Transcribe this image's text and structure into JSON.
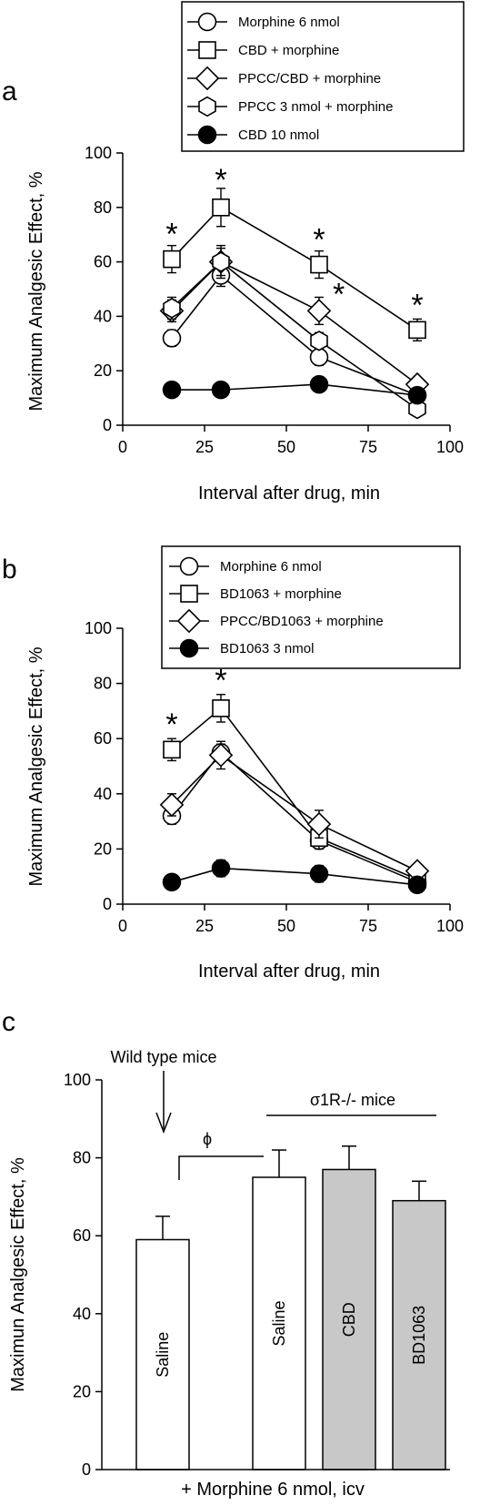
{
  "panels": [
    {
      "letter": "a",
      "chart_data": {
        "type": "line",
        "xlabel": "Interval after drug, min",
        "ylabel": "Maximum Analgesic Effect, %",
        "xlim": [
          0,
          100
        ],
        "ylim": [
          0,
          100
        ],
        "xticks": [
          0,
          25,
          50,
          75,
          100
        ],
        "yticks": [
          0,
          20,
          40,
          60,
          80,
          100
        ],
        "legend_position": "top",
        "series": [
          {
            "name": "Morphine 6 nmol",
            "marker": "circle-open",
            "x": [
              15,
              30,
              60,
              90
            ],
            "y": [
              32,
              55,
              25,
              11
            ],
            "err": [
              3,
              4,
              3,
              2
            ]
          },
          {
            "name": "CBD + morphine",
            "marker": "square-open",
            "x": [
              15,
              30,
              60,
              90
            ],
            "y": [
              61,
              80,
              59,
              35
            ],
            "err": [
              5,
              7,
              5,
              4
            ]
          },
          {
            "name": "PPCC/CBD + morphine",
            "marker": "diamond-open",
            "x": [
              15,
              30,
              60,
              90
            ],
            "y": [
              42,
              60,
              42,
              15
            ],
            "err": [
              4,
              6,
              5,
              2
            ]
          },
          {
            "name": "PPCC 3 nmol + morphine",
            "marker": "hexagon-open",
            "x": [
              15,
              30,
              60,
              90
            ],
            "y": [
              43,
              60,
              31,
              6
            ],
            "err": [
              4,
              5,
              3,
              2
            ]
          },
          {
            "name": "CBD 10 nmol",
            "marker": "circle-filled",
            "x": [
              15,
              30,
              60,
              90
            ],
            "y": [
              13,
              13,
              15,
              11
            ],
            "err": [
              1,
              1,
              2,
              1
            ]
          }
        ],
        "annotations": [
          {
            "text": "*",
            "x": 15,
            "y": 71
          },
          {
            "text": "*",
            "x": 30,
            "y": 91
          },
          {
            "text": "*",
            "x": 60,
            "y": 69
          },
          {
            "text": "*",
            "x": 66,
            "y": 49
          },
          {
            "text": "*",
            "x": 90,
            "y": 45
          }
        ]
      }
    },
    {
      "letter": "b",
      "chart_data": {
        "type": "line",
        "xlabel": "Interval after drug, min",
        "ylabel": "Maximum Analgesic Effect, %",
        "xlim": [
          0,
          100
        ],
        "ylim": [
          0,
          100
        ],
        "xticks": [
          0,
          25,
          50,
          75,
          100
        ],
        "yticks": [
          0,
          20,
          40,
          60,
          80,
          100
        ],
        "legend_position": "top",
        "series": [
          {
            "name": "Morphine 6 nmol",
            "marker": "circle-open",
            "x": [
              15,
              30,
              60,
              90
            ],
            "y": [
              32,
              55,
              23,
              8
            ],
            "err": [
              3,
              3,
              3,
              2
            ]
          },
          {
            "name": "BD1063 + morphine",
            "marker": "square-open",
            "x": [
              15,
              30,
              60,
              90
            ],
            "y": [
              56,
              71,
              24,
              9
            ],
            "err": [
              4,
              5,
              4,
              2
            ]
          },
          {
            "name": "PPCC/BD1063 + morphine",
            "marker": "diamond-open",
            "x": [
              15,
              30,
              60,
              90
            ],
            "y": [
              36,
              54,
              29,
              12
            ],
            "err": [
              4,
              5,
              5,
              2
            ]
          },
          {
            "name": "BD1063 3 nmol",
            "marker": "circle-filled",
            "x": [
              15,
              30,
              60,
              90
            ],
            "y": [
              8,
              13,
              11,
              7
            ],
            "err": [
              2,
              3,
              3,
              2
            ]
          }
        ],
        "annotations": [
          {
            "text": "*",
            "x": 15,
            "y": 66
          },
          {
            "text": "*",
            "x": 30,
            "y": 82
          }
        ]
      }
    },
    {
      "letter": "c",
      "chart_data": {
        "type": "bar",
        "xlabel": "+ Morphine 6 nmol, icv",
        "ylabel": "Maximun Analgesic Effect, %",
        "ylim": [
          0,
          100
        ],
        "yticks": [
          0,
          20,
          40,
          60,
          80,
          100
        ],
        "categories": [
          "Saline",
          "Saline",
          "CBD",
          "BD1063"
        ],
        "values": [
          59,
          75,
          77,
          69
        ],
        "errors": [
          6,
          7,
          6,
          5
        ],
        "fills": [
          "#ffffff",
          "#ffffff",
          "#c8c8c8",
          "#c8c8c8"
        ],
        "annotations": {
          "wild_type": "Wild type mice",
          "knockout": "σ1R-/- mice",
          "significance": "ϕ"
        }
      }
    }
  ]
}
